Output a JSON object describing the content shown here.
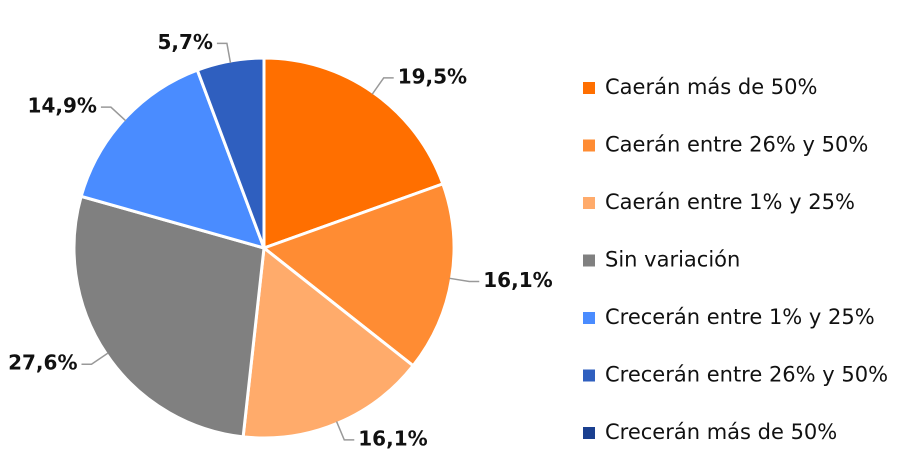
{
  "chart_data": {
    "type": "pie",
    "categories": [
      "Caerán más de 50%",
      "Caerán entre 26% y 50%",
      "Caerán entre 1% y 25%",
      "Sin variación",
      "Crecerán entre 1% y 25%",
      "Crecerán entre 26% y 50%",
      "Crecerán más de 50%"
    ],
    "values": [
      19.5,
      16.1,
      16.1,
      27.6,
      14.9,
      5.7,
      0
    ],
    "value_labels": [
      "19,5%",
      "16,1%",
      "16,1%",
      "27,6%",
      "14,9%",
      "5,7%",
      null
    ],
    "colors": [
      "#ff6f00",
      "#ff8c33",
      "#ffab6b",
      "#808080",
      "#4a8cff",
      "#2f5fbf",
      "#1a3f8f"
    ],
    "legend": "right"
  }
}
